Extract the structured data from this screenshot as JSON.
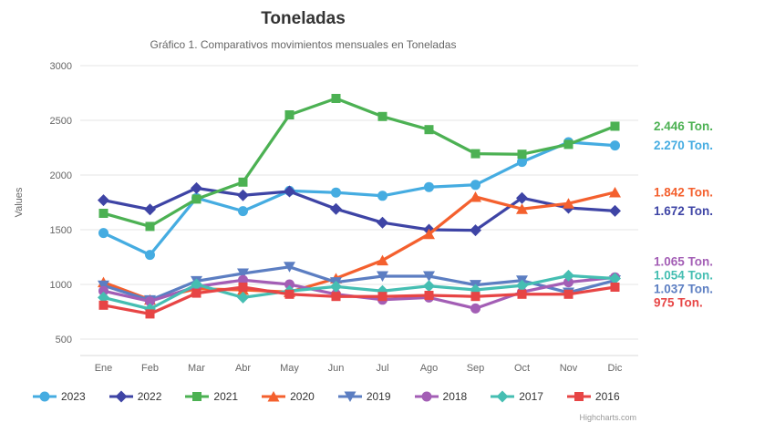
{
  "chart": {
    "title": "Toneladas",
    "subtitle": "Gráfico 1. Comparativos movimientos mensuales en Toneladas",
    "credits": "Highcharts.com"
  },
  "chart_data": {
    "type": "line",
    "title": "Toneladas",
    "subtitle": "Gráfico 1. Comparativos movimientos mensuales en Toneladas",
    "xlabel": "",
    "ylabel": "Values",
    "ylim": [
      500,
      3000
    ],
    "ytick_step": 500,
    "grid": true,
    "legend_position": "bottom",
    "categories": [
      "Ene",
      "Feb",
      "Mar",
      "Abr",
      "May",
      "Jun",
      "Jul",
      "Ago",
      "Sep",
      "Oct",
      "Nov",
      "Dic"
    ],
    "series": [
      {
        "name": "2023",
        "color": "#45ACE1",
        "marker": "circle",
        "end_label": "2.270 Ton.",
        "values": [
          1470,
          1270,
          1790,
          1670,
          1855,
          1840,
          1810,
          1890,
          1910,
          2120,
          2300,
          2270
        ]
      },
      {
        "name": "2022",
        "color": "#3E44A5",
        "marker": "diamond",
        "end_label": "1.672 Ton.",
        "values": [
          1770,
          1685,
          1880,
          1815,
          1850,
          1690,
          1565,
          1500,
          1495,
          1790,
          1700,
          1672
        ]
      },
      {
        "name": "2021",
        "color": "#4CB153",
        "marker": "square",
        "end_label": "2.446 Ton.",
        "values": [
          1650,
          1530,
          1780,
          1935,
          2550,
          2700,
          2535,
          2415,
          2195,
          2190,
          2280,
          2446
        ]
      },
      {
        "name": "2020",
        "color": "#F4602E",
        "marker": "triangle",
        "end_label": "1.842 Ton.",
        "values": [
          1020,
          860,
          960,
          950,
          930,
          1055,
          1220,
          1460,
          1800,
          1690,
          1740,
          1842
        ]
      },
      {
        "name": "2019",
        "color": "#5C7EC2",
        "marker": "triangle-down",
        "end_label": "1.037 Ton.",
        "values": [
          990,
          855,
          1030,
          1100,
          1160,
          1020,
          1075,
          1075,
          995,
          1035,
          925,
          1037
        ]
      },
      {
        "name": "2018",
        "color": "#A35EB5",
        "marker": "circle",
        "end_label": "1.065 Ton.",
        "values": [
          940,
          845,
          980,
          1040,
          1000,
          910,
          860,
          880,
          780,
          930,
          1020,
          1065
        ]
      },
      {
        "name": "2017",
        "color": "#45BEB2",
        "marker": "diamond",
        "end_label": "1.054 Ton.",
        "values": [
          880,
          775,
          1000,
          880,
          940,
          980,
          940,
          985,
          950,
          990,
          1080,
          1054
        ]
      },
      {
        "name": "2016",
        "color": "#E74545",
        "marker": "square",
        "end_label": "975 Ton.",
        "values": [
          810,
          730,
          920,
          975,
          910,
          890,
          890,
          900,
          890,
          910,
          910,
          975
        ]
      }
    ]
  }
}
